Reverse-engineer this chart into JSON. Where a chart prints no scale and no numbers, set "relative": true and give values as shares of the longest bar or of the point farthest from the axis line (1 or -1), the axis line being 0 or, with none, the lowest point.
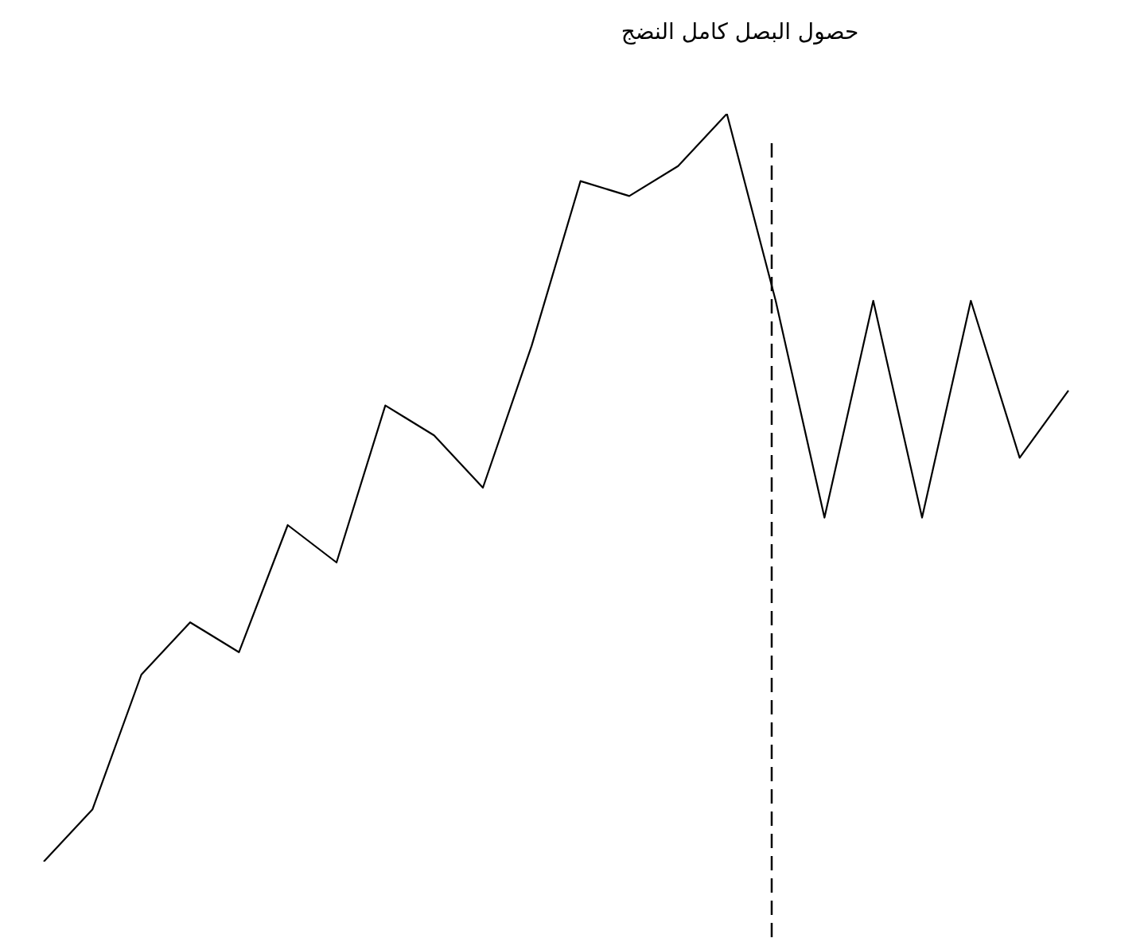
{
  "chart_data": {
    "type": "line",
    "relative": true,
    "categories": [
      null,
      null,
      null,
      null,
      null,
      null,
      null,
      null,
      null,
      null,
      null,
      null,
      null,
      null,
      null,
      null,
      null,
      null,
      null,
      null,
      null,
      null
    ],
    "series": [
      {
        "color": "#000000",
        "values": [
          0,
          0.07,
          0.25,
          0.32,
          0.28,
          0.45,
          0.4,
          0.61,
          0.57,
          0.5,
          0.69,
          0.91,
          0.89,
          0.93,
          1,
          0.75,
          0.46,
          0.75,
          0.46,
          0.75,
          0.54,
          0.63
        ]
      }
    ],
    "annotations": [
      "حصول البصل كامل النضج"
    ],
    "legend": false,
    "marker": "none",
    "line_style": "solid"
  }
}
